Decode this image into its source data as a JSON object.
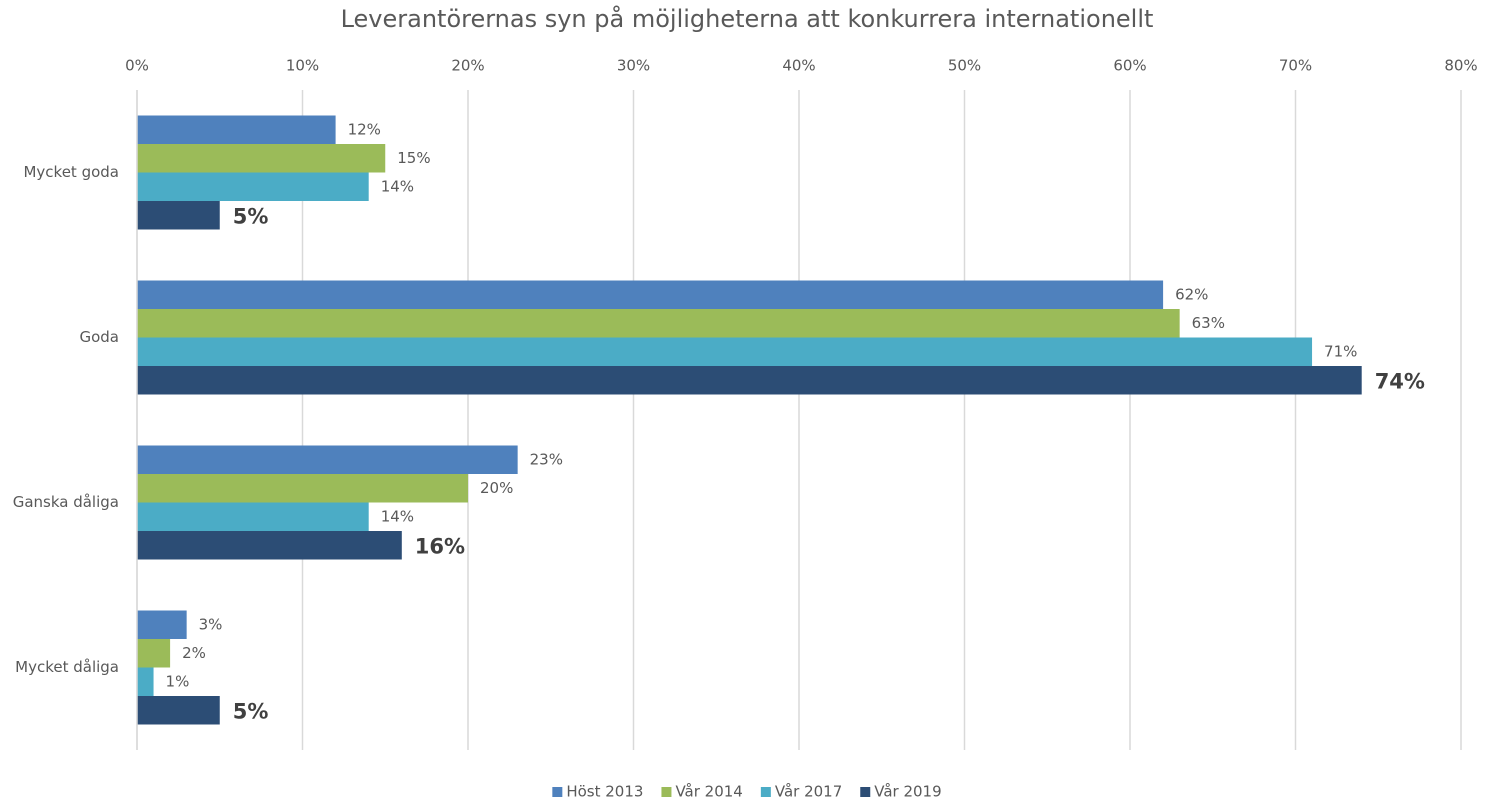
{
  "chart_data": {
    "type": "bar",
    "orientation": "horizontal",
    "title": "Leverantörernas syn på möjligheterna att konkurrera internationellt",
    "categories": [
      "Mycket goda",
      "Goda",
      "Ganska dåliga",
      "Mycket dåliga"
    ],
    "series": [
      {
        "name": "Höst 2013",
        "color": "#4f81bd",
        "values": [
          12,
          62,
          23,
          3
        ],
        "value_labels": [
          "12%",
          "62%",
          "23%",
          "3%"
        ]
      },
      {
        "name": "Vår 2014",
        "color": "#9bbb59",
        "values": [
          15,
          63,
          20,
          2
        ],
        "value_labels": [
          "15%",
          "63%",
          "20%",
          "2%"
        ]
      },
      {
        "name": "Vår 2017",
        "color": "#4bacc6",
        "values": [
          14,
          71,
          14,
          1
        ],
        "value_labels": [
          "14%",
          "71%",
          "14%",
          "1%"
        ]
      },
      {
        "name": "Vår 2019",
        "color": "#2c4d75",
        "values": [
          5,
          74,
          16,
          5
        ],
        "value_labels": [
          "5%",
          "74%",
          "16%",
          "5%"
        ]
      }
    ],
    "xlim": [
      0,
      80
    ],
    "xticks": [
      {
        "value": 0,
        "label": "0%"
      },
      {
        "value": 10,
        "label": "10%"
      },
      {
        "value": 20,
        "label": "20%"
      },
      {
        "value": 30,
        "label": "30%"
      },
      {
        "value": 40,
        "label": "40%"
      },
      {
        "value": 50,
        "label": "50%"
      },
      {
        "value": 60,
        "label": "60%"
      },
      {
        "value": 70,
        "label": "70%"
      },
      {
        "value": 80,
        "label": "80%"
      }
    ],
    "grid": true,
    "legend": "bottom"
  }
}
